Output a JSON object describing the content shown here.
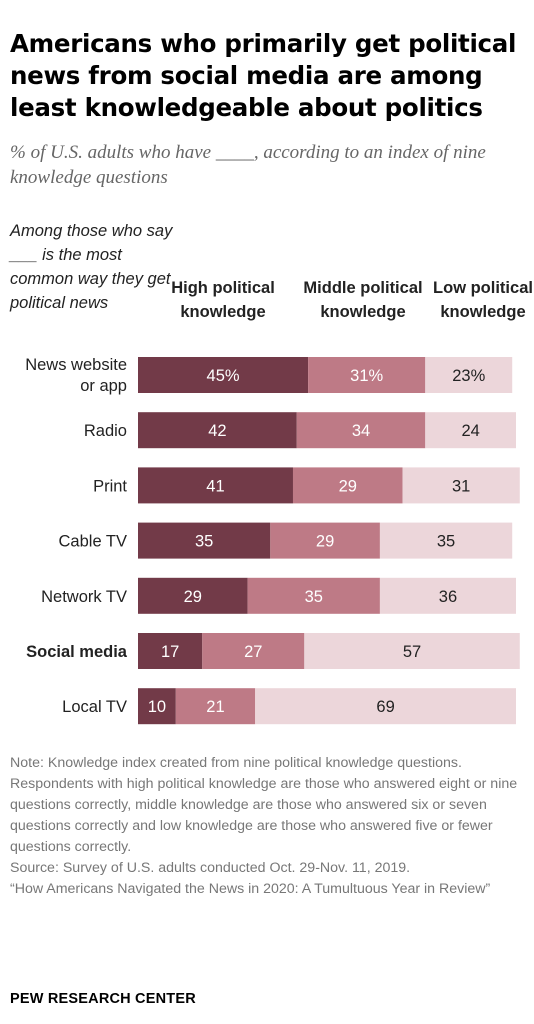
{
  "title": "Americans who primarily get political news from social media are among least knowledgeable about politics",
  "subtitle": "% of U.S. adults who have ____, according to an index of nine knowledge questions",
  "row_header": "Among those who say ___ is the most common way they get political news",
  "column_headers": [
    "High political knowledge",
    "Middle political knowledge",
    "Low political knowledge"
  ],
  "colors": {
    "high": "#723a48",
    "middle": "#be7a86",
    "low": "#ecd6da",
    "text_dark": "#222222",
    "note": "#777777"
  },
  "chart_data": {
    "type": "bar",
    "orientation": "horizontal",
    "stacked": true,
    "categories": [
      "News website or app",
      "Radio",
      "Print",
      "Cable TV",
      "Network TV",
      "Social media",
      "Local TV"
    ],
    "category_lines": [
      [
        "News website",
        "or app"
      ],
      [
        "Radio"
      ],
      [
        "Print"
      ],
      [
        "Cable TV"
      ],
      [
        "Network TV"
      ],
      [
        "Social media"
      ],
      [
        "Local TV"
      ]
    ],
    "highlight_category": "Social media",
    "series": [
      {
        "name": "High political knowledge",
        "values": [
          45,
          42,
          41,
          35,
          29,
          17,
          10
        ]
      },
      {
        "name": "Middle political knowledge",
        "values": [
          31,
          34,
          29,
          29,
          35,
          27,
          21
        ]
      },
      {
        "name": "Low political knowledge",
        "values": [
          23,
          24,
          31,
          35,
          36,
          57,
          69
        ]
      }
    ],
    "data_labels": [
      [
        "45%",
        "31%",
        "23%"
      ],
      [
        "42",
        "34",
        "24"
      ],
      [
        "41",
        "29",
        "31"
      ],
      [
        "35",
        "29",
        "35"
      ],
      [
        "29",
        "35",
        "36"
      ],
      [
        "17",
        "27",
        "57"
      ],
      [
        "10",
        "21",
        "69"
      ]
    ]
  },
  "note": "Note: Knowledge index created from nine political knowledge questions. Respondents with high political knowledge are those who answered eight or nine questions correctly, middle knowledge are those who answered six or seven questions correctly and low knowledge are those who answered five or fewer questions correctly.",
  "source": "Source: Survey of U.S. adults conducted Oct. 29-Nov. 11, 2019.",
  "report": "“How Americans Navigated the News in 2020: A Tumultuous Year in Review”",
  "logo": "PEW RESEARCH CENTER"
}
